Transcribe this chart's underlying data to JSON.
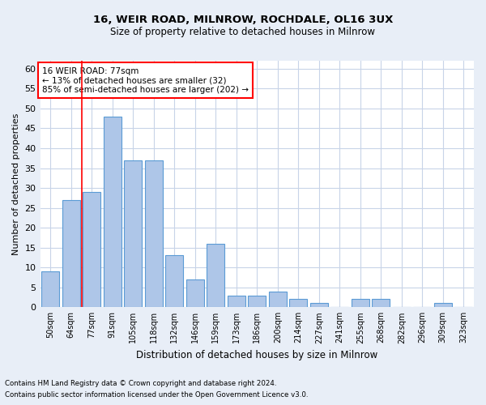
{
  "title_line1": "16, WEIR ROAD, MILNROW, ROCHDALE, OL16 3UX",
  "title_line2": "Size of property relative to detached houses in Milnrow",
  "xlabel": "Distribution of detached houses by size in Milnrow",
  "ylabel": "Number of detached properties",
  "categories": [
    "50sqm",
    "64sqm",
    "77sqm",
    "91sqm",
    "105sqm",
    "118sqm",
    "132sqm",
    "146sqm",
    "159sqm",
    "173sqm",
    "186sqm",
    "200sqm",
    "214sqm",
    "227sqm",
    "241sqm",
    "255sqm",
    "268sqm",
    "282sqm",
    "296sqm",
    "309sqm",
    "323sqm"
  ],
  "values": [
    9,
    27,
    29,
    48,
    37,
    37,
    13,
    7,
    16,
    3,
    3,
    4,
    2,
    1,
    0,
    2,
    2,
    0,
    0,
    1,
    0
  ],
  "bar_color": "#aec6e8",
  "bar_edge_color": "#5b9bd5",
  "highlight_index": 2,
  "annotation_text": "16 WEIR ROAD: 77sqm\n← 13% of detached houses are smaller (32)\n85% of semi-detached houses are larger (202) →",
  "annotation_box_color": "white",
  "annotation_box_edge_color": "red",
  "ylim": [
    0,
    62
  ],
  "yticks": [
    0,
    5,
    10,
    15,
    20,
    25,
    30,
    35,
    40,
    45,
    50,
    55,
    60
  ],
  "footnote_line1": "Contains HM Land Registry data © Crown copyright and database right 2024.",
  "footnote_line2": "Contains public sector information licensed under the Open Government Licence v3.0.",
  "background_color": "#e8eef7",
  "plot_bg_color": "#ffffff",
  "grid_color": "#c8d4e8"
}
